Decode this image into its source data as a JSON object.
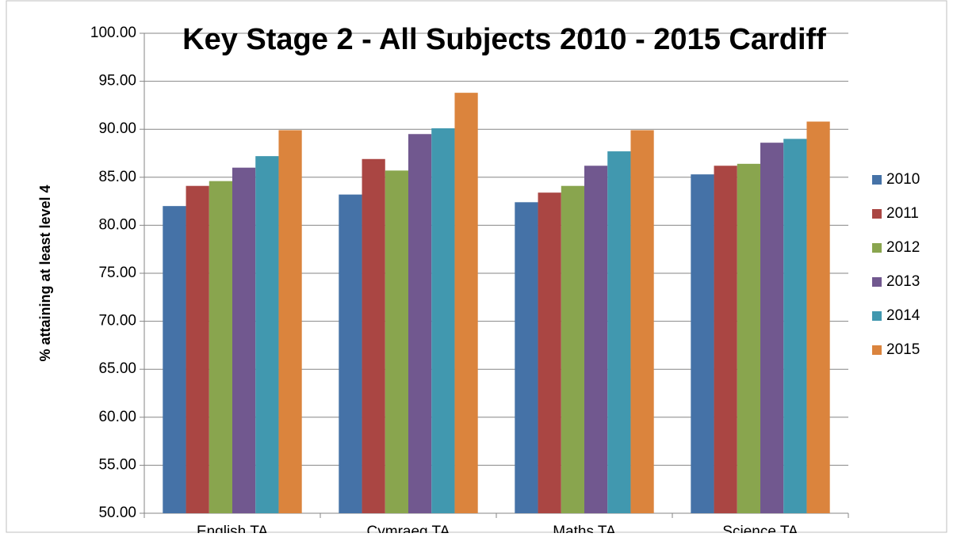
{
  "chart_data": {
    "type": "bar",
    "title": "Key Stage 2 - All Subjects 2010 - 2015 Cardiff",
    "y_label": "% attaining at least level 4",
    "categories": [
      "English TA",
      "Cymraeg TA",
      "Maths TA",
      "Science TA"
    ],
    "series": [
      {
        "name": "2010",
        "color": "#4572a7",
        "values": [
          82.0,
          83.2,
          82.4,
          85.3
        ]
      },
      {
        "name": "2011",
        "color": "#aa4643",
        "values": [
          84.1,
          86.9,
          83.4,
          86.2
        ]
      },
      {
        "name": "2012",
        "color": "#89a54e",
        "values": [
          84.6,
          85.7,
          84.1,
          86.4
        ]
      },
      {
        "name": "2013",
        "color": "#71588f",
        "values": [
          86.0,
          89.5,
          86.2,
          88.6
        ]
      },
      {
        "name": "2014",
        "color": "#4198af",
        "values": [
          87.2,
          90.1,
          87.7,
          89.0
        ]
      },
      {
        "name": "2015",
        "color": "#db843d",
        "values": [
          89.9,
          93.8,
          89.9,
          90.8
        ]
      }
    ],
    "ylim": [
      50,
      100
    ],
    "yticks": [
      {
        "value": 50,
        "label": "50.00"
      },
      {
        "value": 55,
        "label": "55.00"
      },
      {
        "value": 60,
        "label": "60.00"
      },
      {
        "value": 65,
        "label": "65.00"
      },
      {
        "value": 70,
        "label": "70.00"
      },
      {
        "value": 75,
        "label": "75.00"
      },
      {
        "value": 80,
        "label": "80.00"
      },
      {
        "value": 85,
        "label": "85.00"
      },
      {
        "value": 90,
        "label": "90.00"
      },
      {
        "value": 95,
        "label": "95.00"
      },
      {
        "value": 100,
        "label": "100.00"
      }
    ],
    "grid": true,
    "legend": "right"
  }
}
